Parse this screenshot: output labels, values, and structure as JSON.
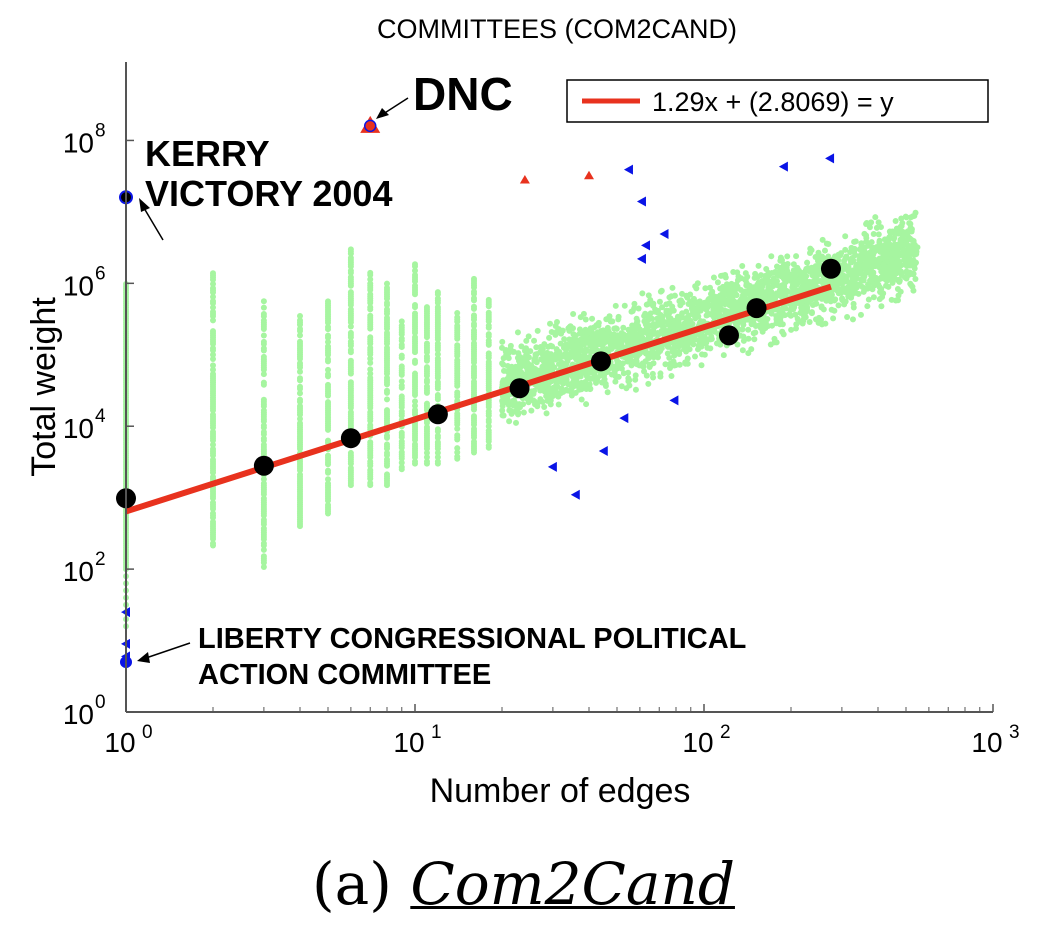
{
  "chart_data": {
    "type": "scatter",
    "title": "COMMITTEES (COM2CAND)",
    "xlabel": "Number of edges",
    "ylabel": "Total weight",
    "xscale": "log",
    "yscale": "log",
    "xlim": [
      1,
      1000
    ],
    "ylim": [
      1,
      1000000000
    ],
    "xticks": [
      {
        "v": 1,
        "base": "10",
        "exp": "0"
      },
      {
        "v": 10,
        "base": "10",
        "exp": "1"
      },
      {
        "v": 100,
        "base": "10",
        "exp": "2"
      },
      {
        "v": 1000,
        "base": "10",
        "exp": "3"
      }
    ],
    "yticks": [
      {
        "v": 1,
        "base": "10",
        "exp": "0"
      },
      {
        "v": 100,
        "base": "10",
        "exp": "2"
      },
      {
        "v": 10000,
        "base": "10",
        "exp": "4"
      },
      {
        "v": 1000000,
        "base": "10",
        "exp": "6"
      },
      {
        "v": 100000000,
        "base": "10",
        "exp": "8"
      }
    ],
    "grid": false,
    "legend": {
      "position": "top-right",
      "label": "1.29x + (2.8069) = y"
    },
    "fit_line": {
      "slope": 1.29,
      "intercept": 2.8069,
      "x_range": [
        1,
        275
      ],
      "color": "#e8321e"
    },
    "colors": {
      "points": "#a6f5a0",
      "medians": "#000000",
      "fit": "#e8321e",
      "outlier_up": "#e8321e",
      "outlier_blue": "#0a14e6"
    },
    "scatter_strips": [
      {
        "x": 1,
        "ymin": 100,
        "ymax": 1000000
      },
      {
        "x": 2,
        "ymin": 200,
        "ymax": 1500000
      },
      {
        "x": 3,
        "ymin": 100,
        "ymax": 600000
      },
      {
        "x": 4,
        "ymin": 400,
        "ymax": 400000
      },
      {
        "x": 5,
        "ymin": 600,
        "ymax": 600000
      },
      {
        "x": 6,
        "ymin": 1500,
        "ymax": 3000000
      },
      {
        "x": 7,
        "ymin": 1500,
        "ymax": 1500000
      },
      {
        "x": 8,
        "ymin": 1500,
        "ymax": 1000000
      },
      {
        "x": 9,
        "ymin": 2500,
        "ymax": 300000
      },
      {
        "x": 10,
        "ymin": 3000,
        "ymax": 2000000
      },
      {
        "x": 11,
        "ymin": 3000,
        "ymax": 500000
      },
      {
        "x": 12,
        "ymin": 3000,
        "ymax": 800000
      },
      {
        "x": 14,
        "ymin": 3500,
        "ymax": 400000
      },
      {
        "x": 16,
        "ymin": 4000,
        "ymax": 1200000
      },
      {
        "x": 18,
        "ymin": 5000,
        "ymax": 600000
      }
    ],
    "scatter_band": {
      "xmin": 20,
      "xmax": 550,
      "log_spread": 0.75
    },
    "medians": {
      "x": [
        1,
        3,
        6,
        12,
        23,
        44,
        122,
        152,
        275
      ],
      "y": [
        980,
        2800,
        6800,
        14700,
        34000,
        81000,
        187000,
        450000,
        1600000
      ]
    },
    "outliers_up": {
      "x": [
        7,
        24,
        40
      ],
      "y": [
        160000000,
        28000000,
        32000000
      ]
    },
    "outliers_blue": {
      "x": [
        55,
        61,
        63,
        73,
        61,
        189,
        273,
        79,
        53,
        45,
        30,
        36,
        1,
        1,
        1
      ],
      "y": [
        39000000,
        14000000,
        3400000,
        4900000,
        2200000,
        43000000,
        56000000,
        23000,
        13000,
        4500,
        2700,
        1100,
        25,
        9,
        6
      ]
    },
    "annotations": [
      {
        "text": "DNC",
        "x": 7,
        "y": 160000000
      },
      {
        "text_lines": [
          "KERRY",
          "VICTORY 2004"
        ],
        "x": 1,
        "y": 16000000
      },
      {
        "text_lines": [
          "LIBERTY CONGRESSIONAL POLITICAL",
          "ACTION COMMITTEE"
        ],
        "x": 1,
        "y": 5
      }
    ]
  },
  "caption": {
    "prefix": "(a) ",
    "name": "Com2Cand"
  }
}
